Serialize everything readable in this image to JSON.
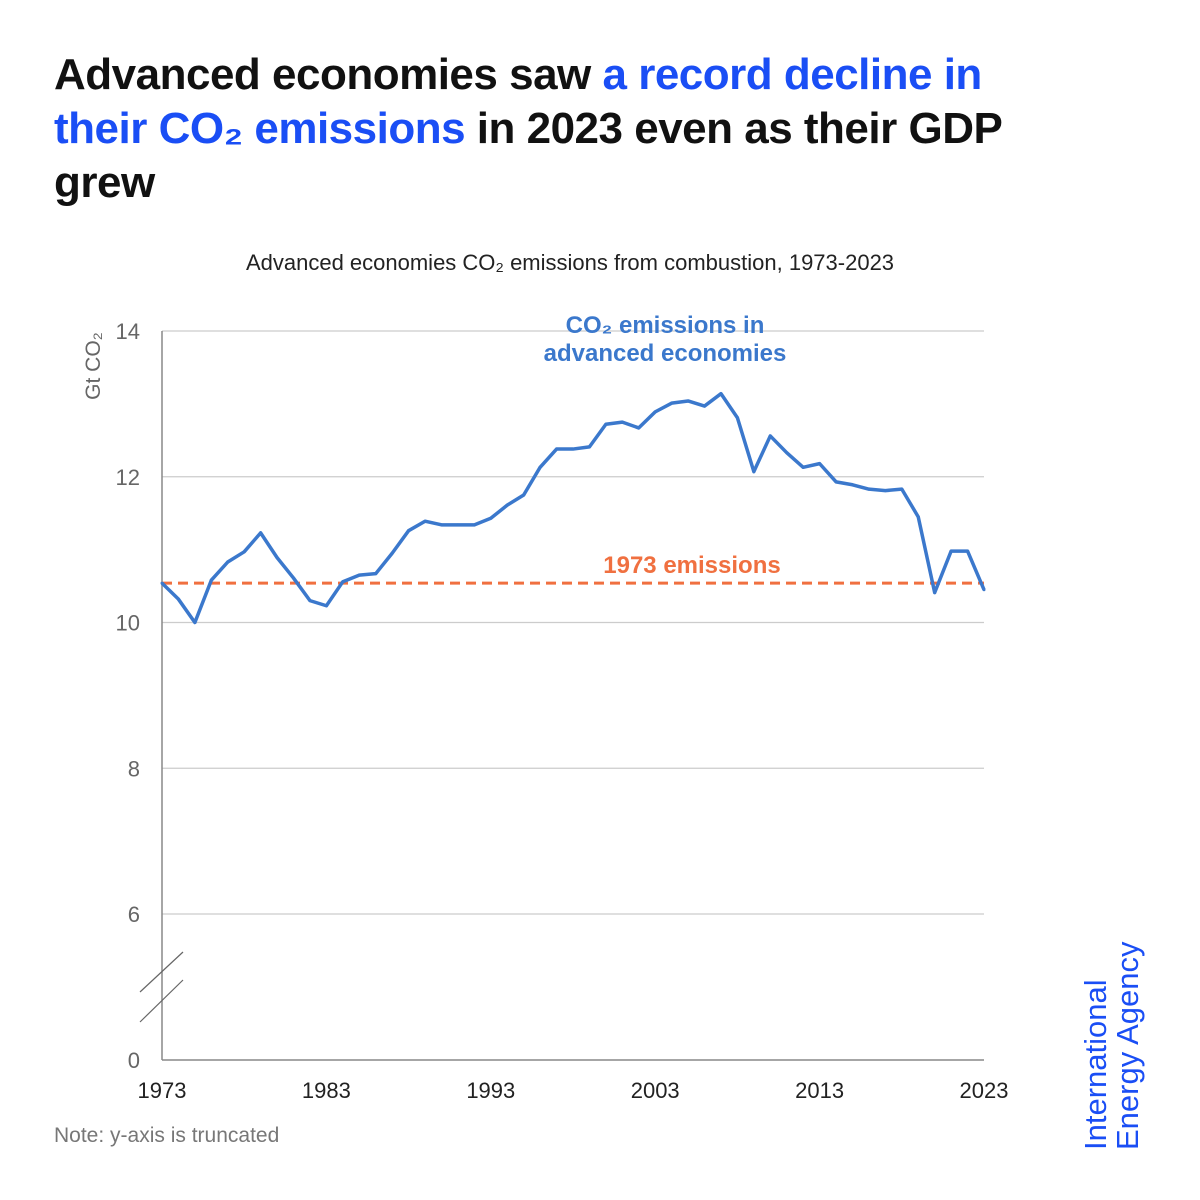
{
  "headline": {
    "part1": "Advanced economies saw ",
    "highlight": "a record decline in their CO₂ emissions",
    "part2": " in 2023 even as their GDP grew"
  },
  "subtitle": "Advanced economies CO₂ emissions from combustion, 1973-2023",
  "note": "Note: y-axis is truncated",
  "logo": {
    "line1": "International",
    "line2": "Energy Agency"
  },
  "colors": {
    "series": "#3b78cc",
    "reference": "#f07040",
    "brand": "#1a4ef5"
  },
  "chart_data": {
    "type": "line",
    "title": "Advanced economies CO₂ emissions from combustion, 1973-2023",
    "ylabel": "Gt CO₂",
    "xlabel": "",
    "ylim": [
      0,
      14
    ],
    "y_truncated_between": [
      0,
      6
    ],
    "yticks": [
      "0",
      "6",
      "8",
      "10",
      "12",
      "14"
    ],
    "xticks": [
      "1973",
      "1983",
      "1993",
      "2003",
      "2013",
      "2023"
    ],
    "grid": true,
    "series": [
      {
        "name": "CO₂ emissions in advanced economies",
        "label_line1": "CO₂ emissions in",
        "label_line2": "advanced economies",
        "x": [
          1973,
          1974,
          1975,
          1976,
          1977,
          1978,
          1979,
          1980,
          1981,
          1982,
          1983,
          1984,
          1985,
          1986,
          1987,
          1988,
          1989,
          1990,
          1991,
          1992,
          1993,
          1994,
          1995,
          1996,
          1997,
          1998,
          1999,
          2000,
          2001,
          2002,
          2003,
          2004,
          2005,
          2006,
          2007,
          2008,
          2009,
          2010,
          2011,
          2012,
          2013,
          2014,
          2015,
          2016,
          2017,
          2018,
          2019,
          2020,
          2021,
          2022,
          2023
        ],
        "values": [
          10.54,
          10.32,
          10.0,
          10.58,
          10.83,
          10.97,
          11.23,
          10.89,
          10.61,
          10.3,
          10.23,
          10.56,
          10.65,
          10.67,
          10.95,
          11.26,
          11.39,
          11.34,
          11.34,
          11.34,
          11.43,
          11.61,
          11.75,
          12.13,
          12.38,
          12.38,
          12.41,
          12.72,
          12.75,
          12.67,
          12.89,
          13.01,
          13.04,
          12.97,
          13.14,
          12.81,
          12.07,
          12.56,
          12.33,
          12.13,
          12.18,
          11.93,
          11.89,
          11.83,
          11.81,
          11.83,
          11.45,
          10.41,
          10.98,
          10.98,
          10.45
        ]
      }
    ],
    "reference_line": {
      "label": "1973 emissions",
      "value": 10.54
    }
  }
}
